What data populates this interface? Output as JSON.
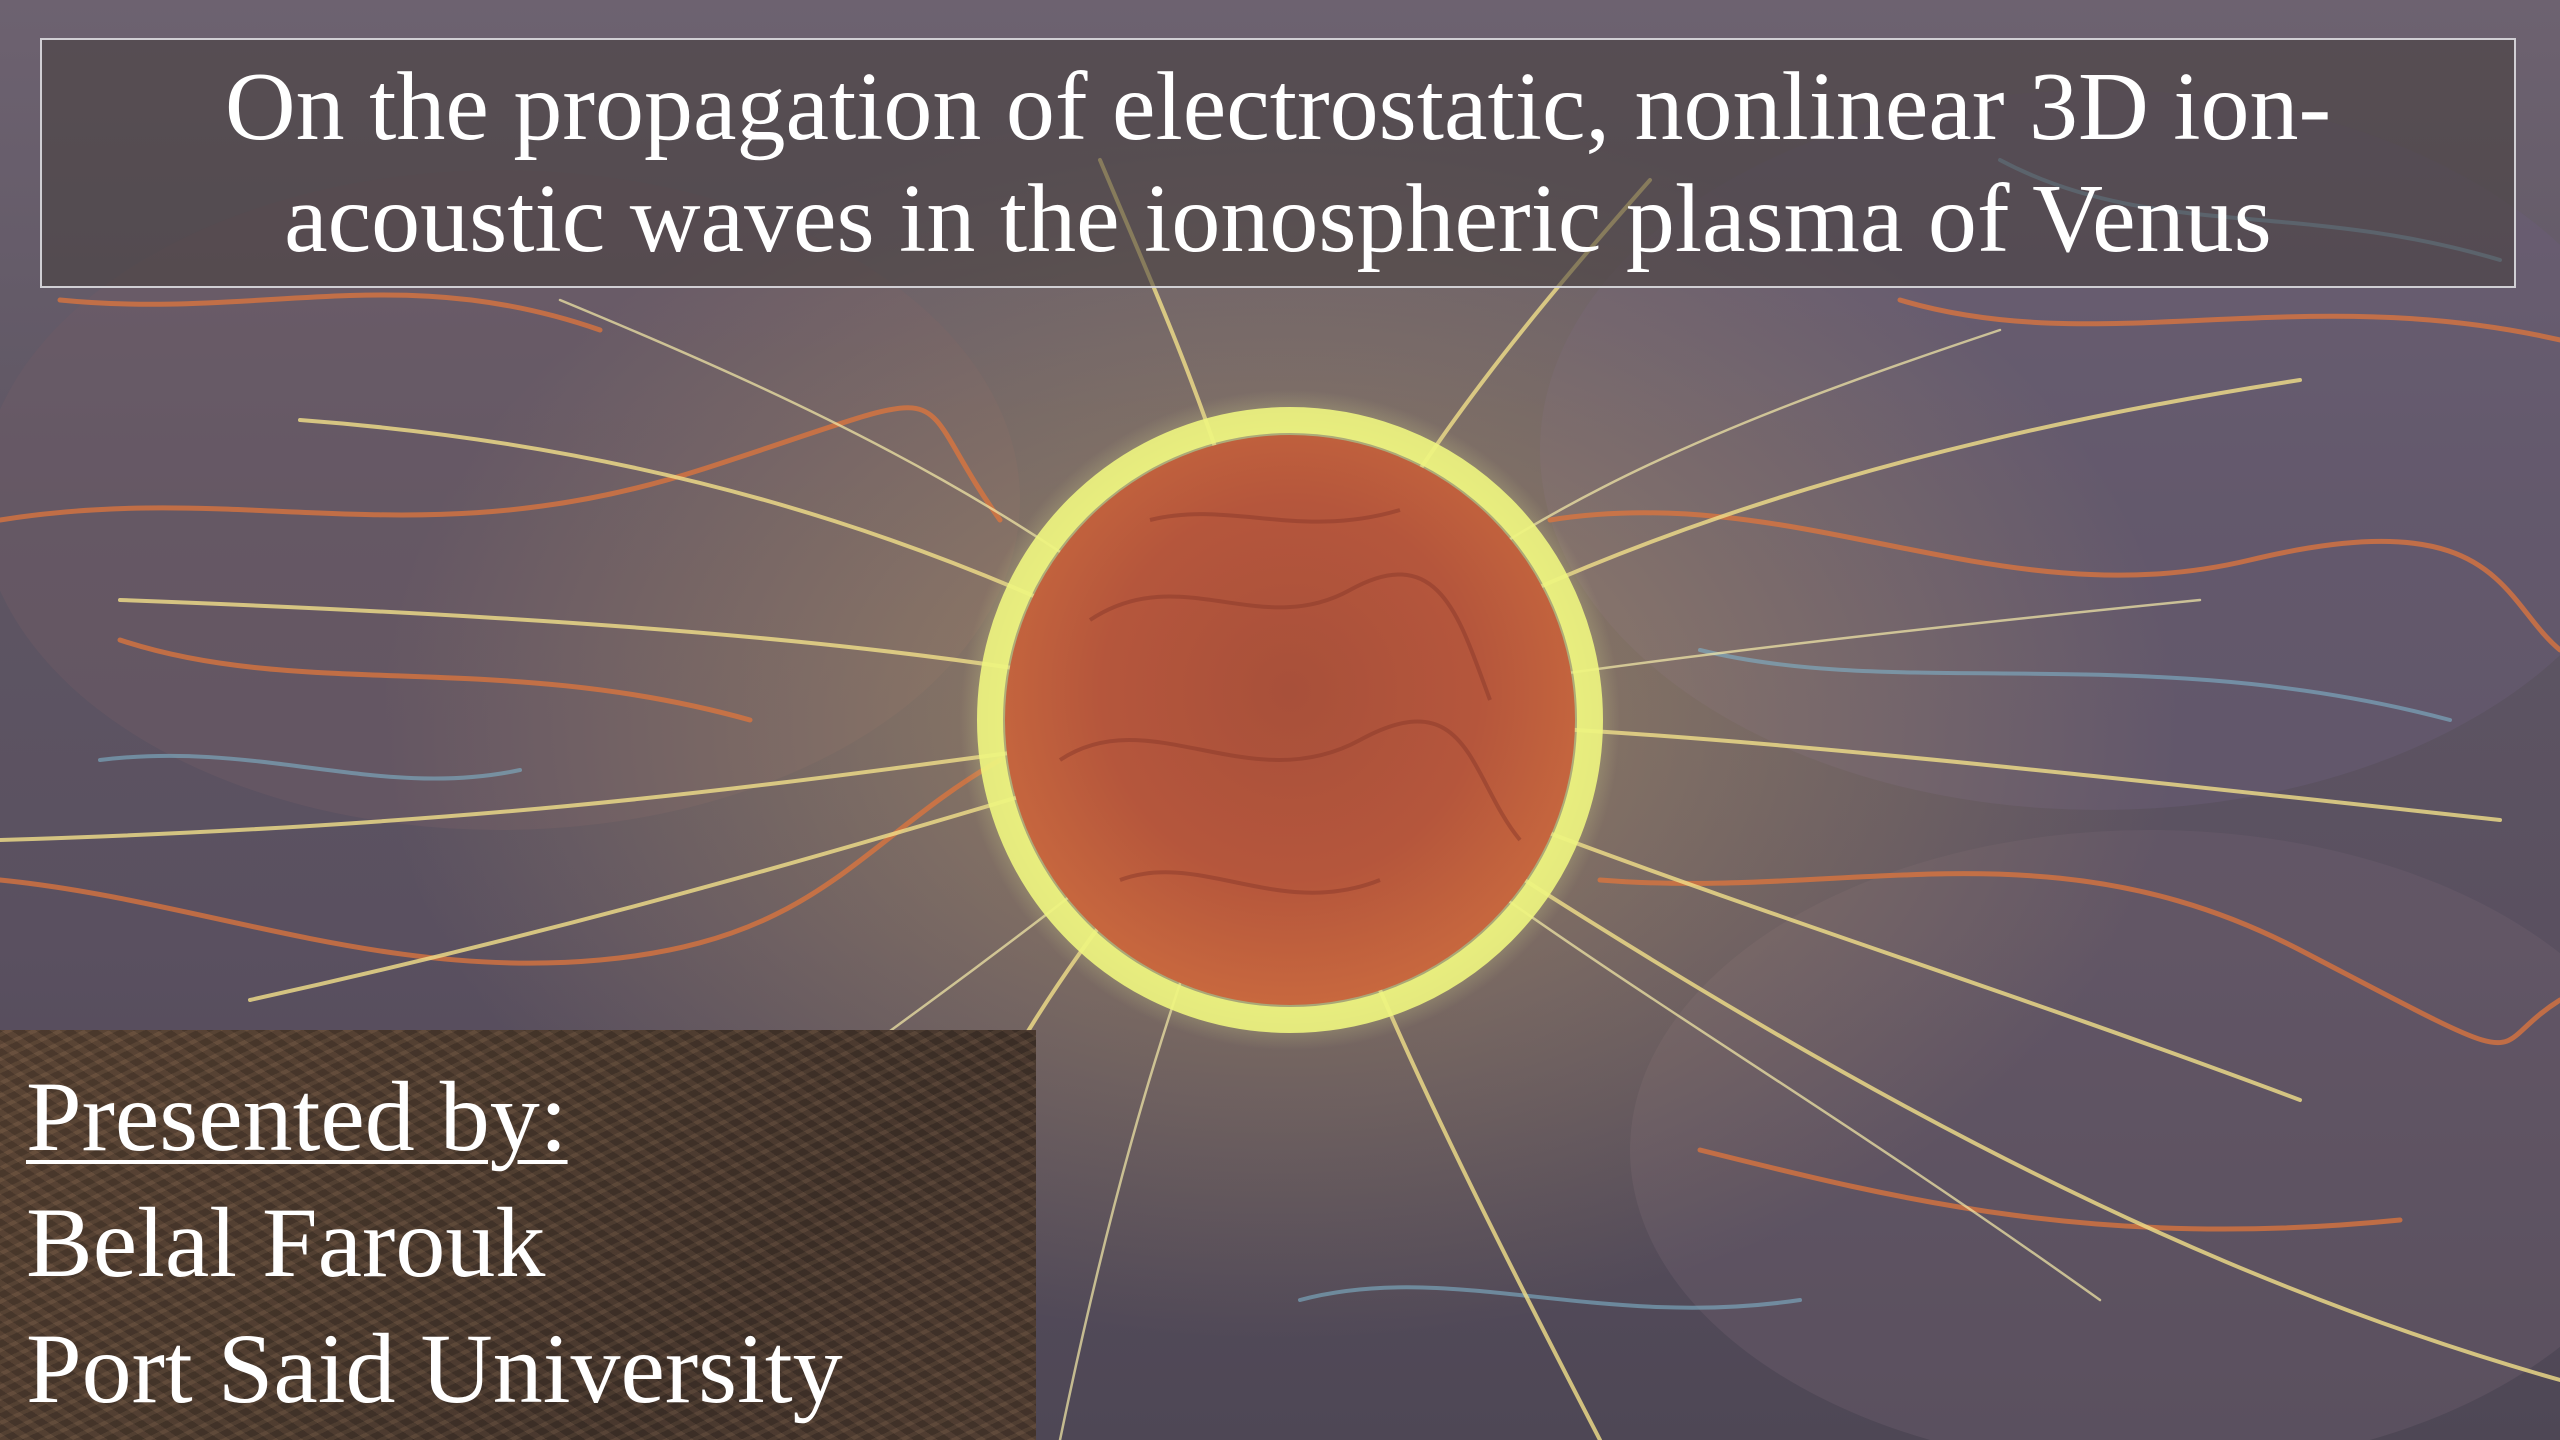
{
  "slide": {
    "title": "On the propagation of electrostatic, nonlinear 3D ion-\nacoustic waves  in the ionospheric plasma of Venus",
    "presenter_heading": "Presented by:",
    "presenter_name": "Belal Farouk",
    "presenter_affiliation": "Port Said University"
  },
  "background": {
    "image_subject": "glowing-sphere-with-plasma-filaments",
    "colors": {
      "sphere_core": "#b5523a",
      "sphere_glow": "#e8f27a",
      "filament_yellow": "#f2e08a",
      "filament_orange": "#e0763c",
      "filament_blue": "#7fb3c9",
      "backdrop": "#5e5663"
    }
  }
}
